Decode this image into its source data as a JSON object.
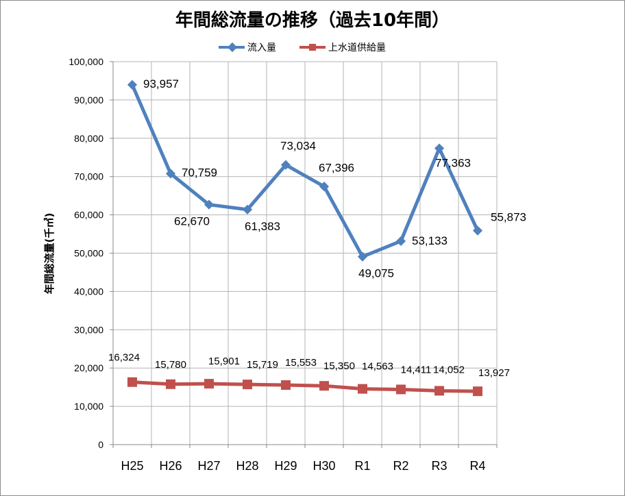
{
  "chart_data": {
    "type": "line",
    "title": "年間総流量の推移（過去10年間）",
    "ylabel": "年間総流量(千㎥)",
    "xlabel": "",
    "categories": [
      "H25",
      "H26",
      "H27",
      "H28",
      "H29",
      "H30",
      "R1",
      "R2",
      "R3",
      "R4"
    ],
    "ylim": [
      0,
      100000
    ],
    "ytick_step": 10000,
    "yticks": [
      "0",
      "10,000",
      "20,000",
      "30,000",
      "40,000",
      "50,000",
      "60,000",
      "70,000",
      "80,000",
      "90,000",
      "100,000"
    ],
    "grid": true,
    "legend_position": "top",
    "series": [
      {
        "name": "流入量",
        "color": "#4f81bd",
        "marker": "diamond",
        "values": [
          93957,
          70759,
          62670,
          61383,
          73034,
          67396,
          49075,
          53133,
          77363,
          55873
        ],
        "labels": [
          "93,957",
          "70,759",
          "62,670",
          "61,383",
          "73,034",
          "67,396",
          "49,075",
          "53,133",
          "77,363",
          "55,873"
        ]
      },
      {
        "name": "上水道供給量",
        "color": "#c0504d",
        "marker": "square",
        "values": [
          16324,
          15780,
          15901,
          15719,
          15553,
          15350,
          14563,
          14411,
          14052,
          13927
        ],
        "labels": [
          "16,324",
          "15,780",
          "15,901",
          "15,719",
          "15,553",
          "15,350",
          "14,563",
          "14,411",
          "14,052",
          "13,927"
        ]
      }
    ]
  }
}
